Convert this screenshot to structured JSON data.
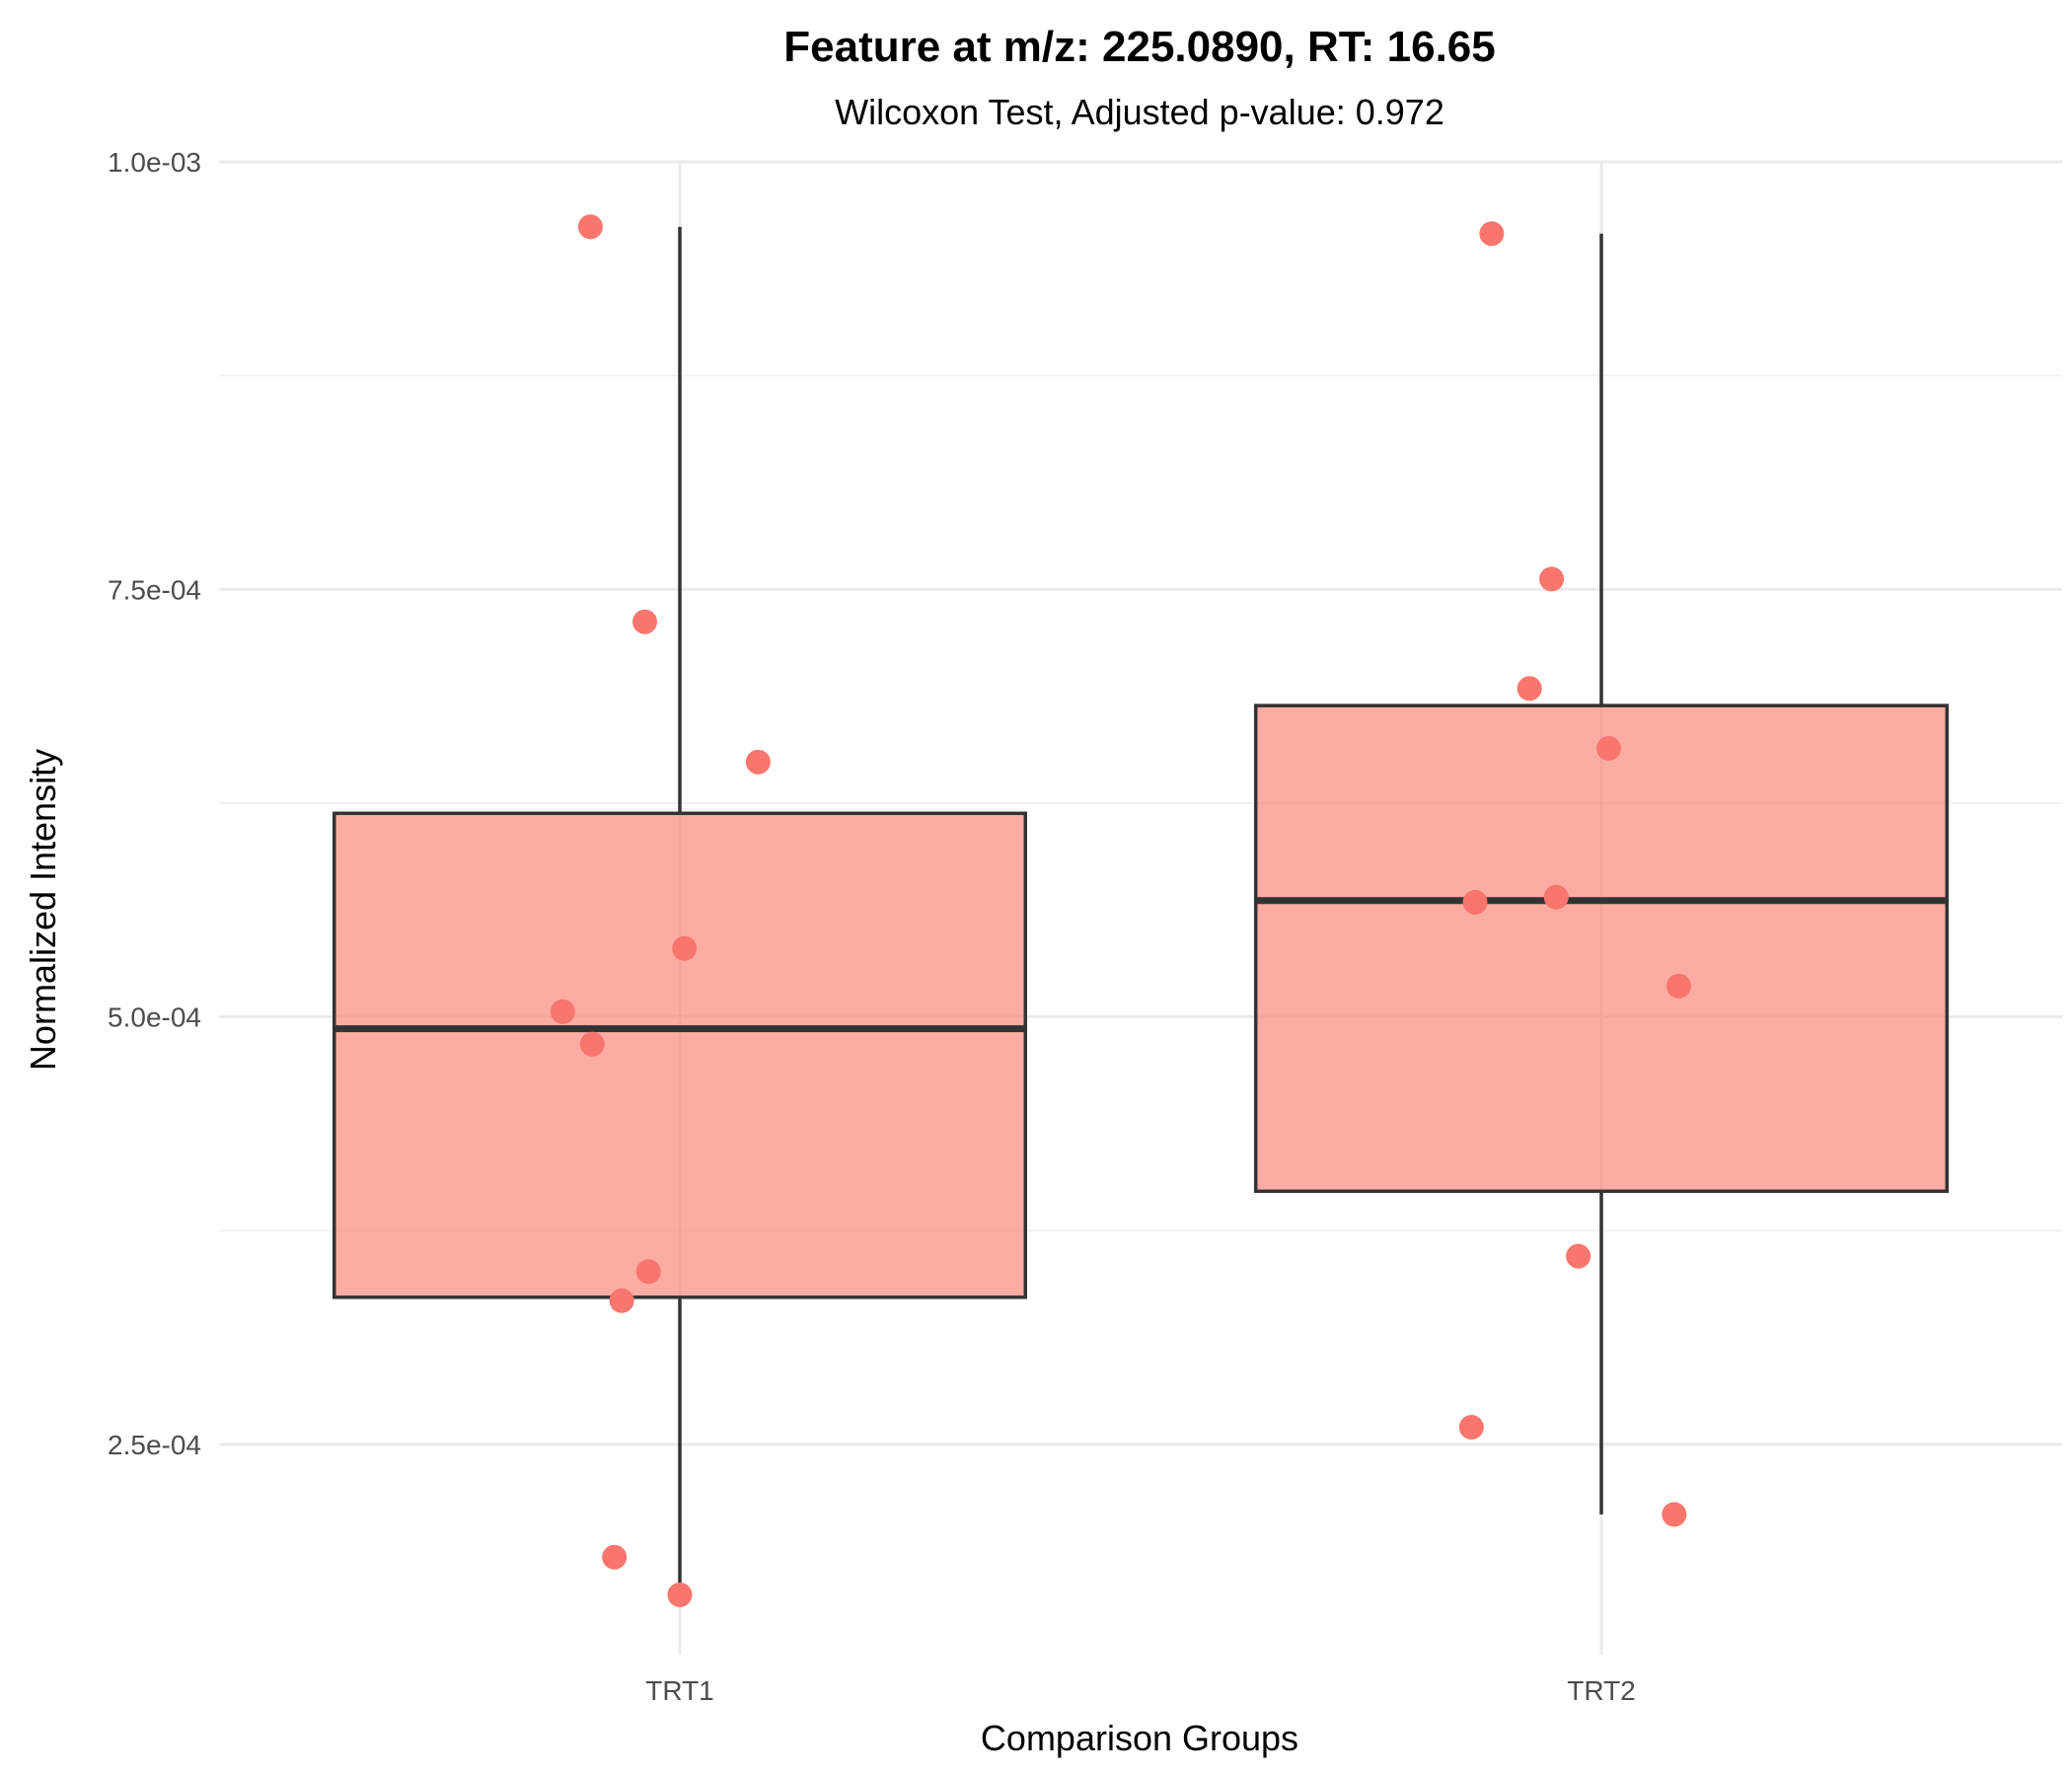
{
  "chart_data": {
    "type": "box",
    "title": "Feature at m/z: 225.0890, RT: 16.65",
    "subtitle": "Wilcoxon Test, Adjusted p-value: 0.972",
    "xlabel": "Comparison Groups",
    "ylabel": "Normalized Intensity",
    "ylim": [
      0.000127,
      0.001
    ],
    "y_ticks": [
      0.00025,
      0.0005,
      0.00075,
      0.001
    ],
    "y_tick_labels": [
      "2.5e-04",
      "5.0e-04",
      "7.5e-04",
      "1.0e-03"
    ],
    "grid": true,
    "legend": "none",
    "box_fill": "#fa7f72",
    "box_stroke": "#333333",
    "point_color": "#f8766d",
    "categories": [
      "TRT1",
      "TRT2"
    ],
    "groups": [
      {
        "name": "TRT1",
        "whisker_low": 0.000162,
        "q1": 0.000336,
        "median": 0.000493,
        "q3": 0.000619,
        "whisker_high": 0.000962,
        "points": [
          {
            "dx": -0.097,
            "y": 0.000962
          },
          {
            "dx": -0.038,
            "y": 0.000731
          },
          {
            "dx": 0.085,
            "y": 0.000649
          },
          {
            "dx": 0.005,
            "y": 0.00054
          },
          {
            "dx": -0.127,
            "y": 0.000503
          },
          {
            "dx": -0.095,
            "y": 0.000484
          },
          {
            "dx": -0.034,
            "y": 0.000351
          },
          {
            "dx": -0.063,
            "y": 0.000334
          },
          {
            "dx": -0.071,
            "y": 0.000184
          },
          {
            "dx": 0.0,
            "y": 0.000162
          }
        ]
      },
      {
        "name": "TRT2",
        "whisker_low": 0.000209,
        "q1": 0.000398,
        "median": 0.000568,
        "q3": 0.000682,
        "whisker_high": 0.000958,
        "points": [
          {
            "dx": -0.119,
            "y": 0.000958
          },
          {
            "dx": -0.054,
            "y": 0.000756
          },
          {
            "dx": -0.078,
            "y": 0.000692
          },
          {
            "dx": 0.008,
            "y": 0.000657
          },
          {
            "dx": -0.137,
            "y": 0.000567
          },
          {
            "dx": -0.049,
            "y": 0.00057
          },
          {
            "dx": 0.084,
            "y": 0.000518
          },
          {
            "dx": -0.025,
            "y": 0.00036
          },
          {
            "dx": -0.141,
            "y": 0.00026
          },
          {
            "dx": 0.079,
            "y": 0.000209
          }
        ]
      }
    ]
  }
}
